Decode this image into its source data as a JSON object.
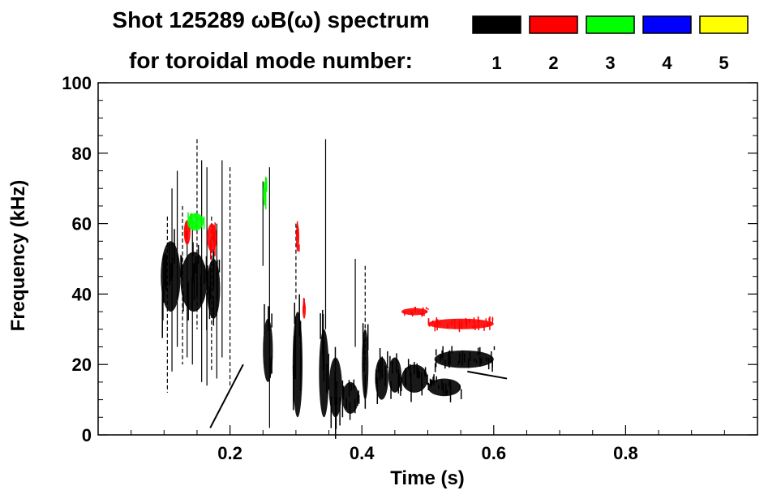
{
  "chart_data": {
    "type": "heatmap",
    "title_line1": "Shot 125289 ωB(ω) spectrum",
    "title_line2": "for toroidal mode number:",
    "xlabel": "Time (s)",
    "ylabel": "Frequency (kHz)",
    "xlim": [
      0.0,
      1.0
    ],
    "ylim": [
      0,
      100
    ],
    "x_ticks": [
      0.2,
      0.4,
      0.6,
      0.8
    ],
    "x_tick_labels": [
      "0.2",
      "0.4",
      "0.6",
      "0.8"
    ],
    "y_ticks": [
      0,
      20,
      40,
      60,
      80,
      100
    ],
    "y_tick_labels": [
      "0",
      "20",
      "40",
      "60",
      "80",
      "100"
    ],
    "grid": false,
    "legend": {
      "placement": "top-right",
      "entries": [
        {
          "label": "1",
          "color": "#000000"
        },
        {
          "label": "2",
          "color": "#ff0000"
        },
        {
          "label": "3",
          "color": "#00ff00"
        },
        {
          "label": "4",
          "color": "#0000ff"
        },
        {
          "label": "5",
          "color": "#ffff00"
        }
      ]
    },
    "regions": [
      {
        "mode": 1,
        "t": [
          0.095,
          0.125
        ],
        "f": [
          35,
          55
        ]
      },
      {
        "mode": 1,
        "t": [
          0.125,
          0.165
        ],
        "f": [
          35,
          52
        ]
      },
      {
        "mode": 1,
        "t": [
          0.165,
          0.185
        ],
        "f": [
          33,
          50
        ]
      },
      {
        "mode": 1,
        "t": [
          0.25,
          0.265
        ],
        "f": [
          15,
          33
        ]
      },
      {
        "mode": 1,
        "t": [
          0.295,
          0.31
        ],
        "f": [
          5,
          35
        ]
      },
      {
        "mode": 1,
        "t": [
          0.335,
          0.35
        ],
        "f": [
          5,
          30
        ]
      },
      {
        "mode": 1,
        "t": [
          0.35,
          0.37
        ],
        "f": [
          5,
          22
        ]
      },
      {
        "mode": 1,
        "t": [
          0.37,
          0.395
        ],
        "f": [
          6,
          15
        ]
      },
      {
        "mode": 1,
        "t": [
          0.4,
          0.41
        ],
        "f": [
          10,
          30
        ]
      },
      {
        "mode": 1,
        "t": [
          0.42,
          0.44
        ],
        "f": [
          10,
          22
        ]
      },
      {
        "mode": 1,
        "t": [
          0.44,
          0.46
        ],
        "f": [
          12,
          22
        ]
      },
      {
        "mode": 1,
        "t": [
          0.46,
          0.5
        ],
        "f": [
          12,
          20
        ]
      },
      {
        "mode": 1,
        "t": [
          0.5,
          0.55
        ],
        "f": [
          11,
          16
        ]
      },
      {
        "mode": 1,
        "t": [
          0.51,
          0.6
        ],
        "f": [
          19,
          24
        ]
      },
      {
        "mode": 2,
        "t": [
          0.13,
          0.14
        ],
        "f": [
          54,
          61
        ]
      },
      {
        "mode": 2,
        "t": [
          0.165,
          0.18
        ],
        "f": [
          52,
          60
        ]
      },
      {
        "mode": 2,
        "t": [
          0.3,
          0.305
        ],
        "f": [
          52,
          60
        ]
      },
      {
        "mode": 2,
        "t": [
          0.31,
          0.315
        ],
        "f": [
          33,
          38
        ]
      },
      {
        "mode": 2,
        "t": [
          0.46,
          0.5
        ],
        "f": [
          34,
          36
        ]
      },
      {
        "mode": 2,
        "t": [
          0.5,
          0.6
        ],
        "f": [
          30,
          33
        ]
      },
      {
        "mode": 3,
        "t": [
          0.135,
          0.16
        ],
        "f": [
          58,
          63
        ]
      },
      {
        "mode": 3,
        "t": [
          0.25,
          0.255
        ],
        "f": [
          65,
          72
        ]
      }
    ],
    "vertical_streaks": [
      {
        "t": 0.105,
        "f": [
          12,
          62
        ]
      },
      {
        "t": 0.112,
        "f": [
          18,
          70
        ]
      },
      {
        "t": 0.12,
        "f": [
          25,
          75
        ]
      },
      {
        "t": 0.128,
        "f": [
          20,
          65
        ]
      },
      {
        "t": 0.135,
        "f": [
          22,
          58
        ]
      },
      {
        "t": 0.143,
        "f": [
          20,
          60
        ]
      },
      {
        "t": 0.15,
        "f": [
          30,
          84
        ]
      },
      {
        "t": 0.157,
        "f": [
          15,
          78
        ]
      },
      {
        "t": 0.165,
        "f": [
          14,
          76
        ]
      },
      {
        "t": 0.172,
        "f": [
          18,
          62
        ]
      },
      {
        "t": 0.18,
        "f": [
          16,
          60
        ]
      },
      {
        "t": 0.188,
        "f": [
          22,
          78
        ]
      },
      {
        "t": 0.2,
        "f": [
          14,
          76
        ]
      },
      {
        "t": 0.25,
        "f": [
          48,
          72
        ]
      },
      {
        "t": 0.26,
        "f": [
          2,
          76
        ]
      },
      {
        "t": 0.3,
        "f": [
          38,
          60
        ]
      },
      {
        "t": 0.345,
        "f": [
          30,
          84
        ]
      },
      {
        "t": 0.39,
        "f": [
          25,
          50
        ]
      },
      {
        "t": 0.405,
        "f": [
          20,
          48
        ]
      }
    ],
    "chirps": [
      {
        "t": [
          0.17,
          0.22
        ],
        "f": [
          2,
          20
        ]
      },
      {
        "t": [
          0.56,
          0.62
        ],
        "f": [
          18,
          16
        ]
      }
    ]
  }
}
